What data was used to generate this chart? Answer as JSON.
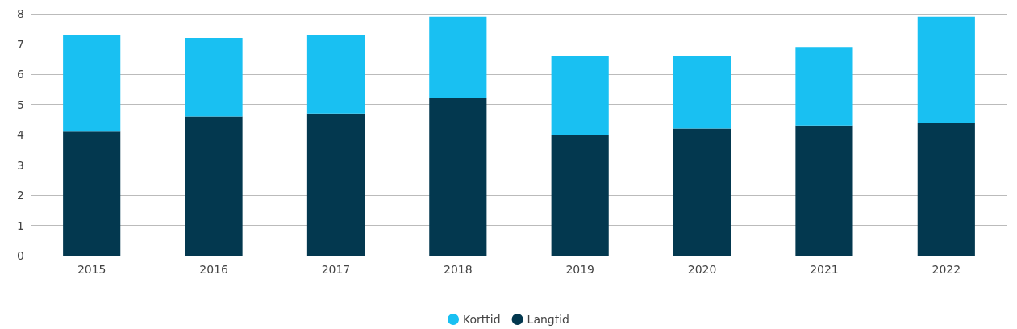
{
  "chart_data": {
    "type": "bar",
    "stacked": true,
    "categories": [
      "2015",
      "2016",
      "2017",
      "2018",
      "2019",
      "2020",
      "2021",
      "2022"
    ],
    "series": [
      {
        "name": "Langtid",
        "color": "#03384f",
        "values": [
          4.1,
          4.6,
          4.7,
          5.2,
          4.0,
          4.2,
          4.3,
          4.4
        ]
      },
      {
        "name": "Korttid",
        "color": "#19c0f2",
        "values": [
          3.2,
          2.6,
          2.6,
          2.7,
          2.6,
          2.4,
          2.6,
          3.5
        ]
      }
    ],
    "ylim": [
      0,
      8
    ],
    "yticks": [
      0,
      1,
      2,
      3,
      4,
      5,
      6,
      7,
      8
    ],
    "grid": "y",
    "legend": "bottom"
  }
}
